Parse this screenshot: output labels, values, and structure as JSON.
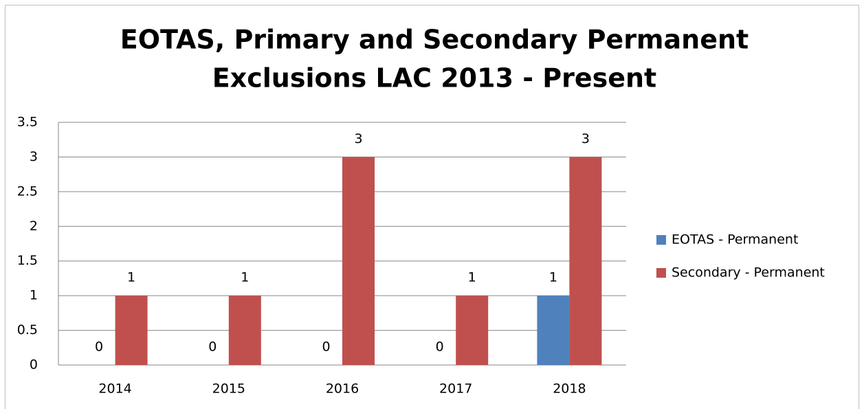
{
  "chart_data": {
    "type": "bar",
    "title": [
      "EOTAS, Primary and Secondary Permanent",
      "Exclusions LAC 2013 - Present"
    ],
    "categories": [
      "2014",
      "2015",
      "2016",
      "2017",
      "2018"
    ],
    "series": [
      {
        "name": "EOTAS - Permanent",
        "color": "#4f81bd",
        "values": [
          0,
          0,
          0,
          0,
          1
        ]
      },
      {
        "name": "Secondary - Permanent",
        "color": "#c0504d",
        "values": [
          1,
          1,
          3,
          1,
          3
        ]
      }
    ],
    "ylim": [
      0,
      3.5
    ],
    "yticks": [
      0,
      0.5,
      1,
      1.5,
      2,
      2.5,
      3,
      3.5
    ],
    "grid": true,
    "legend": "right"
  }
}
